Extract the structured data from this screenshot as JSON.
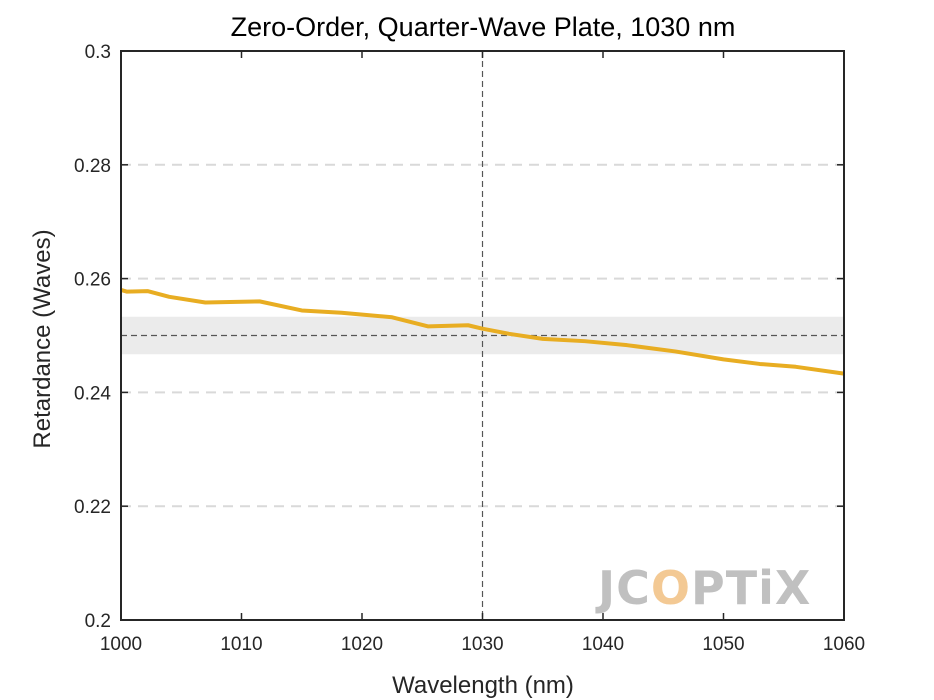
{
  "chart_data": {
    "type": "line",
    "title": "Zero-Order, Quarter-Wave Plate, 1030 nm",
    "xlabel": "Wavelength (nm)",
    "ylabel": "Retardance (Waves)",
    "xlim": [
      1000,
      1060
    ],
    "ylim": [
      0.2,
      0.3
    ],
    "xticks": [
      1000,
      1010,
      1020,
      1030,
      1040,
      1050,
      1060
    ],
    "xtick_labels": [
      "1000",
      "1010",
      "1020",
      "1030",
      "1040",
      "1050",
      "1060"
    ],
    "yticks": [
      0.2,
      0.22,
      0.24,
      0.26,
      0.28,
      0.3
    ],
    "ytick_labels": [
      "0.2",
      "0.22",
      "0.24",
      "0.26",
      "0.28",
      "0.3"
    ],
    "grid": "horizontal dashed",
    "design_wavelength": 1030,
    "target_retardance": 0.25,
    "tolerance_band": [
      0.2467,
      0.2533
    ],
    "series": [
      {
        "color": "#e8ad22",
        "x": [
          1000,
          1000.5,
          1002.2,
          1004,
          1007,
          1011.5,
          1015,
          1018.3,
          1022.5,
          1025.5,
          1028.8,
          1030,
          1032.2,
          1035,
          1038.5,
          1042,
          1046,
          1050,
          1053,
          1056,
          1060
        ],
        "y": [
          0.258,
          0.2577,
          0.2578,
          0.2568,
          0.2558,
          0.256,
          0.2544,
          0.254,
          0.2532,
          0.2516,
          0.2518,
          0.2512,
          0.2503,
          0.2494,
          0.249,
          0.2483,
          0.2472,
          0.2458,
          0.245,
          0.2445,
          0.2433
        ]
      }
    ]
  },
  "logo": {
    "text": "JCOPTIX",
    "parts": [
      "J",
      "C",
      "O",
      "PT",
      "i",
      "X"
    ],
    "colors": {
      "main": "#bdbdbd",
      "accent": "#f3c78f"
    }
  }
}
